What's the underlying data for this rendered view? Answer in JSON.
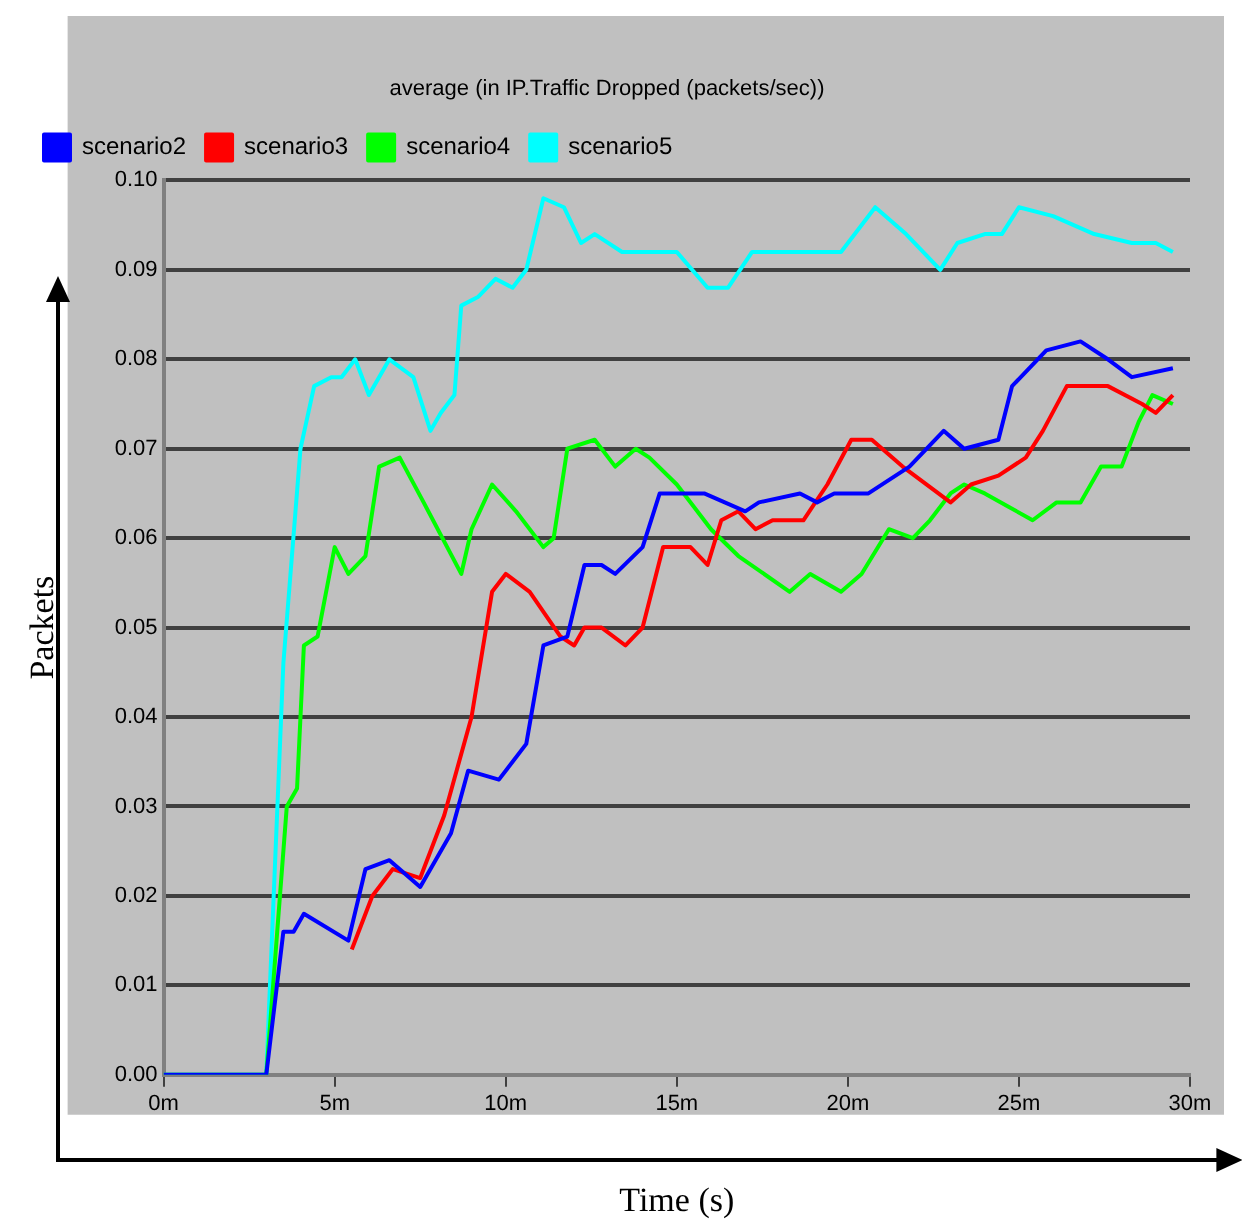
{
  "chart_data": {
    "type": "line",
    "title": "average (in IP.Traffic Dropped (packets/sec))",
    "xlabel": "Time (s)",
    "ylabel": "Packets",
    "xlim": [
      0,
      30
    ],
    "ylim": [
      0,
      0.1
    ],
    "xticks": [
      {
        "value": 0,
        "label": "0m"
      },
      {
        "value": 5,
        "label": "5m"
      },
      {
        "value": 10,
        "label": "10m"
      },
      {
        "value": 15,
        "label": "15m"
      },
      {
        "value": 20,
        "label": "20m"
      },
      {
        "value": 25,
        "label": "25m"
      },
      {
        "value": 30,
        "label": "30m"
      }
    ],
    "yticks": [
      {
        "value": 0,
        "label": "0.00"
      },
      {
        "value": 0.01,
        "label": "0.01"
      },
      {
        "value": 0.02,
        "label": "0.02"
      },
      {
        "value": 0.03,
        "label": "0.03"
      },
      {
        "value": 0.04,
        "label": "0.04"
      },
      {
        "value": 0.05,
        "label": "0.05"
      },
      {
        "value": 0.06,
        "label": "0.06"
      },
      {
        "value": 0.07,
        "label": "0.07"
      },
      {
        "value": 0.08,
        "label": "0.08"
      },
      {
        "value": 0.09,
        "label": "0.09"
      },
      {
        "value": 0.1,
        "label": "0.10"
      }
    ],
    "grid": "y",
    "legend": "top left",
    "marker": "none",
    "line_style": "solid",
    "series": [
      {
        "name": "scenario2",
        "color": "#0000ff",
        "x": [
          0,
          3.0,
          3.5,
          3.8,
          4.1,
          5.4,
          5.9,
          6.6,
          7.5,
          8.4,
          8.9,
          9.8,
          10.6,
          11.1,
          11.8,
          12.3,
          12.8,
          13.2,
          14.0,
          14.5,
          15.0,
          15.8,
          17.0,
          17.4,
          18.6,
          19.1,
          19.6,
          20.6,
          21.8,
          22.8,
          23.4,
          24.4,
          24.8,
          25.8,
          26.8,
          27.6,
          28.3,
          29.5
        ],
        "values": [
          0,
          0,
          0.016,
          0.016,
          0.018,
          0.015,
          0.023,
          0.024,
          0.021,
          0.027,
          0.034,
          0.033,
          0.037,
          0.048,
          0.049,
          0.057,
          0.057,
          0.056,
          0.059,
          0.065,
          0.065,
          0.065,
          0.063,
          0.064,
          0.065,
          0.064,
          0.065,
          0.065,
          0.068,
          0.072,
          0.07,
          0.071,
          0.077,
          0.081,
          0.082,
          0.08,
          0.078,
          0.079
        ]
      },
      {
        "name": "scenario3",
        "color": "#ff0000",
        "x": [
          5.5,
          6.1,
          6.7,
          7.5,
          8.2,
          9.0,
          9.6,
          10.0,
          10.7,
          11.6,
          12.0,
          12.3,
          12.8,
          13.5,
          14.0,
          14.6,
          15.4,
          15.9,
          16.3,
          16.8,
          17.3,
          17.8,
          18.7,
          19.4,
          20.1,
          20.7,
          21.6,
          23.0,
          23.6,
          24.4,
          25.2,
          25.7,
          26.4,
          27.6,
          28.6,
          29.0,
          29.5
        ],
        "values": [
          0.014,
          0.02,
          0.023,
          0.022,
          0.029,
          0.04,
          0.054,
          0.056,
          0.054,
          0.049,
          0.048,
          0.05,
          0.05,
          0.048,
          0.05,
          0.059,
          0.059,
          0.057,
          0.062,
          0.063,
          0.061,
          0.062,
          0.062,
          0.066,
          0.071,
          0.071,
          0.068,
          0.064,
          0.066,
          0.067,
          0.069,
          0.072,
          0.077,
          0.077,
          0.075,
          0.074,
          0.076
        ]
      },
      {
        "name": "scenario4",
        "color": "#00ff00",
        "x": [
          0,
          3.0,
          3.6,
          3.9,
          4.1,
          4.5,
          5.0,
          5.4,
          5.9,
          6.3,
          6.9,
          7.6,
          8.7,
          9.0,
          9.6,
          10.3,
          11.1,
          11.4,
          11.8,
          12.6,
          13.2,
          13.8,
          14.2,
          15.0,
          16.0,
          16.8,
          18.3,
          18.9,
          19.8,
          20.4,
          21.2,
          21.9,
          22.4,
          23.0,
          23.4,
          24.0,
          25.4,
          26.1,
          26.8,
          27.4,
          28.0,
          28.5,
          28.9,
          29.5
        ],
        "values": [
          0,
          0,
          0.03,
          0.032,
          0.048,
          0.049,
          0.059,
          0.056,
          0.058,
          0.068,
          0.069,
          0.064,
          0.056,
          0.061,
          0.066,
          0.063,
          0.059,
          0.06,
          0.07,
          0.071,
          0.068,
          0.07,
          0.069,
          0.066,
          0.061,
          0.058,
          0.054,
          0.056,
          0.054,
          0.056,
          0.061,
          0.06,
          0.062,
          0.065,
          0.066,
          0.065,
          0.062,
          0.064,
          0.064,
          0.068,
          0.068,
          0.073,
          0.076,
          0.075
        ]
      },
      {
        "name": "scenario5",
        "color": "#00ffff",
        "x": [
          0,
          3.0,
          3.5,
          4.0,
          4.4,
          4.9,
          5.2,
          5.6,
          6.0,
          6.6,
          7.3,
          7.8,
          8.1,
          8.5,
          8.7,
          9.2,
          9.7,
          10.2,
          10.6,
          11.1,
          11.7,
          12.2,
          12.6,
          13.4,
          14.2,
          15.0,
          15.9,
          16.5,
          17.2,
          18.8,
          19.4,
          19.8,
          20.8,
          21.7,
          22.7,
          23.2,
          24.0,
          24.5,
          25.0,
          26.0,
          27.2,
          28.3,
          29.0,
          29.5
        ],
        "values": [
          0,
          0,
          0.046,
          0.07,
          0.077,
          0.078,
          0.078,
          0.08,
          0.076,
          0.08,
          0.078,
          0.072,
          0.074,
          0.076,
          0.086,
          0.087,
          0.089,
          0.088,
          0.09,
          0.098,
          0.097,
          0.093,
          0.094,
          0.092,
          0.092,
          0.092,
          0.088,
          0.088,
          0.092,
          0.092,
          0.092,
          0.092,
          0.097,
          0.094,
          0.09,
          0.093,
          0.094,
          0.094,
          0.097,
          0.096,
          0.094,
          0.093,
          0.093,
          0.092
        ]
      }
    ]
  }
}
